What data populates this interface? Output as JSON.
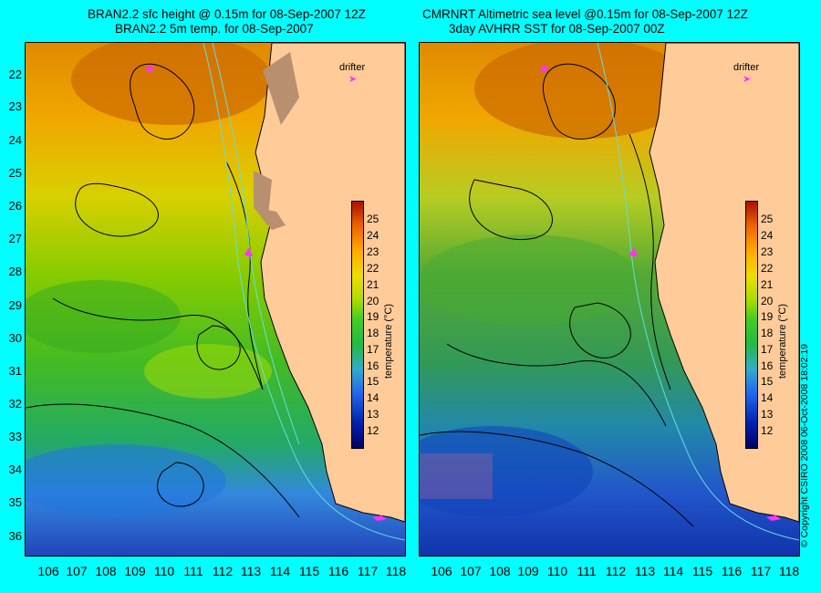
{
  "left_panel": {
    "title_line1": "BRAN2.2 sfc height @ 0.15m for 08-Sep-2007 12Z",
    "title_line2": "BRAN2.2 5m temp. for 08-Sep-2007"
  },
  "right_panel": {
    "title_line1": "CMRNRT Altimetric sea level  @0.15m  for 08-Sep-2007 12Z",
    "title_line2": "3day AVHRR SST for 08-Sep-2007 00Z"
  },
  "latitude_labels": [
    "22",
    "23",
    "24",
    "25",
    "26",
    "27",
    "28",
    "29",
    "30",
    "31",
    "32",
    "33",
    "34",
    "35",
    "36"
  ],
  "longitude_labels": [
    "106",
    "107",
    "108",
    "109",
    "110",
    "111",
    "112",
    "113",
    "114",
    "115",
    "116",
    "117",
    "118"
  ],
  "colorbar": {
    "ticks": [
      "25",
      "24",
      "23",
      "22",
      "21",
      "20",
      "19",
      "18",
      "17",
      "16",
      "15",
      "14",
      "13",
      "12"
    ],
    "unit_label": "temperature (°C)"
  },
  "legend": {
    "drifter_label": "drifter"
  },
  "copyright": "© Copyright CSIRO 2008    06-Oct-2008 18:02:19",
  "colors": {
    "background": "#00ffff",
    "land": "#ffcc99",
    "drifter": "#ff33ff",
    "contour": "#000000",
    "isobath": "#66dddd"
  }
}
